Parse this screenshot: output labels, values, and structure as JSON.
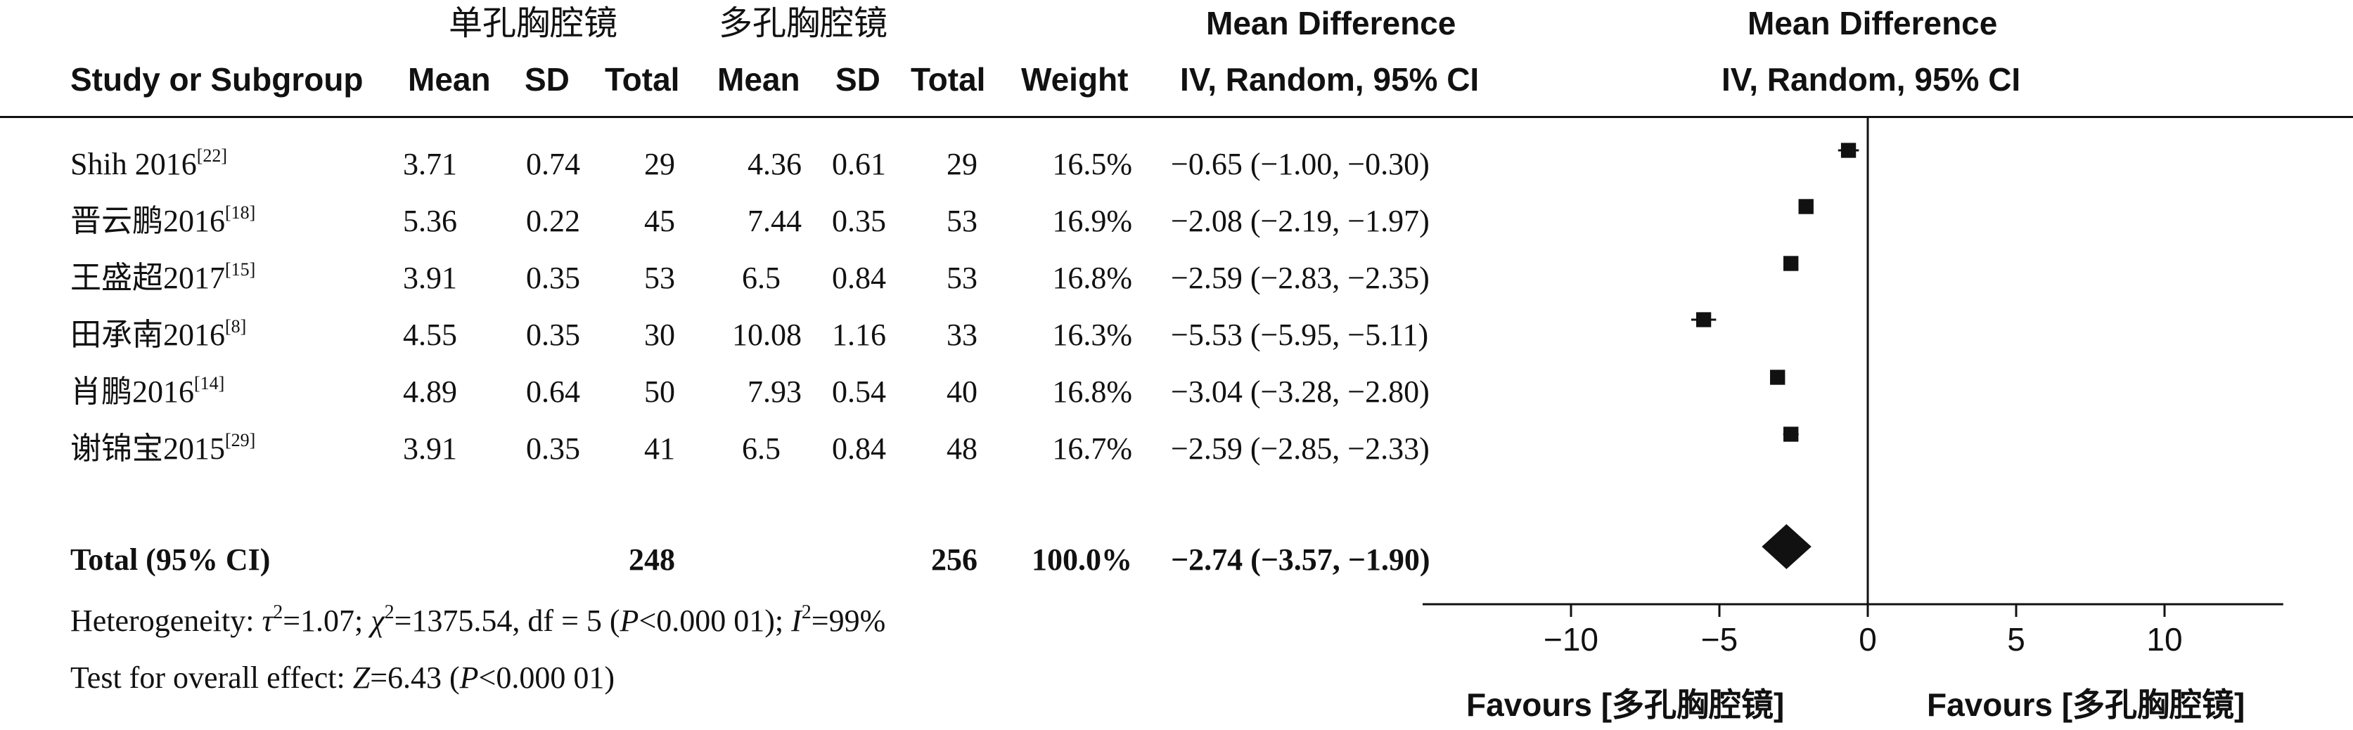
{
  "header": {
    "group1_label": "单孔胸腔镜",
    "group2_label": "多孔胸腔镜",
    "study_label": "Study or Subgroup",
    "mean_label": "Mean",
    "sd_label": "SD",
    "total_label": "Total",
    "weight_label": "Weight",
    "md_label": "Mean Difference",
    "md_sub_label": "IV, Random, 95% CI",
    "plot_label": "Mean Difference",
    "plot_sub_label": "IV, Random, 95% CI"
  },
  "studies": [
    {
      "name": "Shih 2016",
      "ref": "[22]",
      "m1": "3.71",
      "sd1": "0.74",
      "n1": "29",
      "m2": "4.36",
      "sd2": "0.61",
      "n2": "29",
      "weight": "16.5%",
      "ci_text": "−0.65 (−1.00, −0.30)"
    },
    {
      "name": "晋云鹏2016",
      "ref": "[18]",
      "m1": "5.36",
      "sd1": "0.22",
      "n1": "45",
      "m2": "7.44",
      "sd2": "0.35",
      "n2": "53",
      "weight": "16.9%",
      "ci_text": "−2.08 (−2.19, −1.97)"
    },
    {
      "name": "王盛超2017",
      "ref": "[15]",
      "m1": "3.91",
      "sd1": "0.35",
      "n1": "53",
      "m2": "6.5",
      "sd2": "0.84",
      "n2": "53",
      "weight": "16.8%",
      "ci_text": "−2.59 (−2.83, −2.35)"
    },
    {
      "name": "田承南2016",
      "ref": "[8]",
      "m1": "4.55",
      "sd1": "0.35",
      "n1": "30",
      "m2": "10.08",
      "sd2": "1.16",
      "n2": "33",
      "weight": "16.3%",
      "ci_text": "−5.53 (−5.95, −5.11)"
    },
    {
      "name": "肖鹏2016",
      "ref": "[14]",
      "m1": "4.89",
      "sd1": "0.64",
      "n1": "50",
      "m2": "7.93",
      "sd2": "0.54",
      "n2": "40",
      "weight": "16.8%",
      "ci_text": "−3.04 (−3.28, −2.80)"
    },
    {
      "name": "谢锦宝2015",
      "ref": "[29]",
      "m1": "3.91",
      "sd1": "0.35",
      "n1": "41",
      "m2": "6.5",
      "sd2": "0.84",
      "n2": "48",
      "weight": "16.7%",
      "ci_text": "−2.59 (−2.85, −2.33)"
    }
  ],
  "total": {
    "label": "Total (95% CI)",
    "n1": "248",
    "n2": "256",
    "weight": "100.0%",
    "ci_text": "−2.74 (−3.57, −1.90)"
  },
  "footer": {
    "heterogeneity_prefix": "Heterogeneity: ",
    "tau_symbol": "τ",
    "tau_value": "=1.07; ",
    "chi_symbol": "χ",
    "chi_value": "=1375.54, df = 5 (",
    "p_symbol": "P",
    "p_value": "<0.000 01); ",
    "i_symbol": "I",
    "i_value": "=99%",
    "squared": "2",
    "overall_prefix": "Test for overall effect: ",
    "z_symbol": "Z",
    "z_value": "=6.43 (",
    "p2_value": "<0.000 01)"
  },
  "favours": {
    "left": "Favours [多孔胸腔镜]",
    "right": "Favours [多孔胸腔镜]"
  },
  "chart_data": {
    "type": "forest",
    "xlim": [
      -15,
      14
    ],
    "ticks": [
      -10,
      -5,
      0,
      5,
      10
    ],
    "tick_labels": [
      "−10",
      "−5",
      "0",
      "5",
      "10"
    ],
    "studies": [
      {
        "name": "Shih 2016",
        "md": -0.65,
        "lo": -1.0,
        "hi": -0.3,
        "weight": 16.5
      },
      {
        "name": "晋云鹏2016",
        "md": -2.08,
        "lo": -2.19,
        "hi": -1.97,
        "weight": 16.9
      },
      {
        "name": "王盛超2017",
        "md": -2.59,
        "lo": -2.83,
        "hi": -2.35,
        "weight": 16.8
      },
      {
        "name": "田承南2016",
        "md": -5.53,
        "lo": -5.95,
        "hi": -5.11,
        "weight": 16.3
      },
      {
        "name": "肖鹏2016",
        "md": -3.04,
        "lo": -3.28,
        "hi": -2.8,
        "weight": 16.8
      },
      {
        "name": "谢锦宝2015",
        "md": -2.59,
        "lo": -2.85,
        "hi": -2.33,
        "weight": 16.7
      }
    ],
    "pooled": {
      "md": -2.74,
      "lo": -3.57,
      "hi": -1.9
    }
  }
}
